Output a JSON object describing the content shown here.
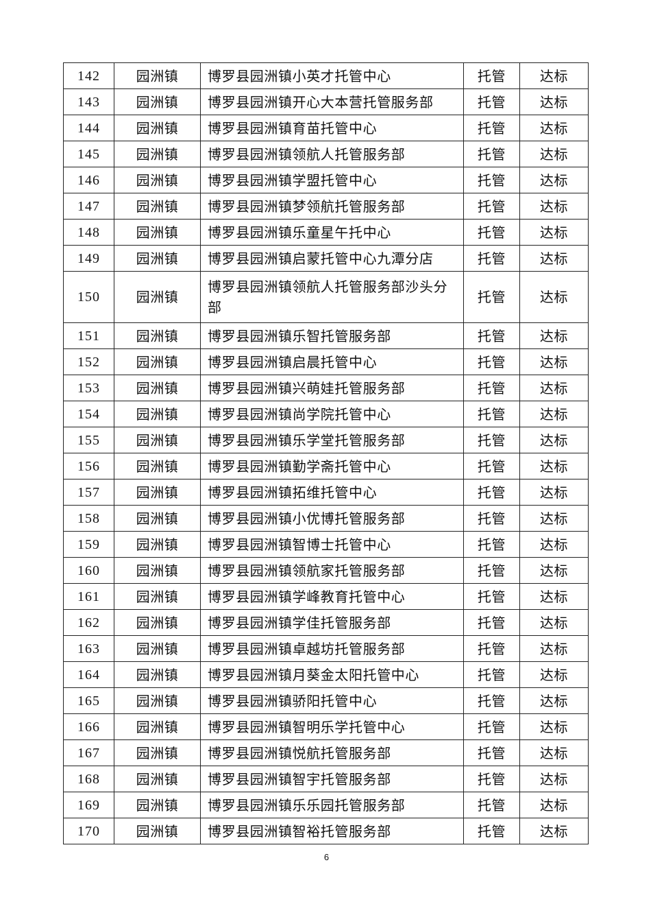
{
  "table": {
    "rows": [
      {
        "no": "142",
        "town": "园洲镇",
        "name": "博罗县园洲镇小英才托管中心",
        "type": "托管",
        "result": "达标"
      },
      {
        "no": "143",
        "town": "园洲镇",
        "name": "博罗县园洲镇开心大本营托管服务部",
        "type": "托管",
        "result": "达标"
      },
      {
        "no": "144",
        "town": "园洲镇",
        "name": "博罗县园洲镇育苗托管中心",
        "type": "托管",
        "result": "达标"
      },
      {
        "no": "145",
        "town": "园洲镇",
        "name": "博罗县园洲镇领航人托管服务部",
        "type": "托管",
        "result": "达标"
      },
      {
        "no": "146",
        "town": "园洲镇",
        "name": "博罗县园洲镇学盟托管中心",
        "type": "托管",
        "result": "达标"
      },
      {
        "no": "147",
        "town": "园洲镇",
        "name": "博罗县园洲镇梦领航托管服务部",
        "type": "托管",
        "result": "达标"
      },
      {
        "no": "148",
        "town": "园洲镇",
        "name": "博罗县园洲镇乐童星午托中心",
        "type": "托管",
        "result": "达标"
      },
      {
        "no": "149",
        "town": "园洲镇",
        "name": "博罗县园洲镇启蒙托管中心九潭分店",
        "type": "托管",
        "result": "达标"
      },
      {
        "no": "150",
        "town": "园洲镇",
        "name": "博罗县园洲镇领航人托管服务部沙头分部",
        "type": "托管",
        "result": "达标"
      },
      {
        "no": "151",
        "town": "园洲镇",
        "name": "博罗县园洲镇乐智托管服务部",
        "type": "托管",
        "result": "达标"
      },
      {
        "no": "152",
        "town": "园洲镇",
        "name": "博罗县园洲镇启晨托管中心",
        "type": "托管",
        "result": "达标"
      },
      {
        "no": "153",
        "town": "园洲镇",
        "name": "博罗县园洲镇兴萌娃托管服务部",
        "type": "托管",
        "result": "达标"
      },
      {
        "no": "154",
        "town": "园洲镇",
        "name": "博罗县园洲镇尚学院托管中心",
        "type": "托管",
        "result": "达标"
      },
      {
        "no": "155",
        "town": "园洲镇",
        "name": "博罗县园洲镇乐学堂托管服务部",
        "type": "托管",
        "result": "达标"
      },
      {
        "no": "156",
        "town": "园洲镇",
        "name": "博罗县园洲镇勤学斋托管中心",
        "type": "托管",
        "result": "达标"
      },
      {
        "no": "157",
        "town": "园洲镇",
        "name": "博罗县园洲镇拓维托管中心",
        "type": "托管",
        "result": "达标"
      },
      {
        "no": "158",
        "town": "园洲镇",
        "name": "博罗县园洲镇小优博托管服务部",
        "type": "托管",
        "result": "达标"
      },
      {
        "no": "159",
        "town": "园洲镇",
        "name": "博罗县园洲镇智博士托管中心",
        "type": "托管",
        "result": "达标"
      },
      {
        "no": "160",
        "town": "园洲镇",
        "name": "博罗县园洲镇领航家托管服务部",
        "type": "托管",
        "result": "达标"
      },
      {
        "no": "161",
        "town": "园洲镇",
        "name": "博罗县园洲镇学峰教育托管中心",
        "type": "托管",
        "result": "达标"
      },
      {
        "no": "162",
        "town": "园洲镇",
        "name": "博罗县园洲镇学佳托管服务部",
        "type": "托管",
        "result": "达标"
      },
      {
        "no": "163",
        "town": "园洲镇",
        "name": "博罗县园洲镇卓越坊托管服务部",
        "type": "托管",
        "result": "达标"
      },
      {
        "no": "164",
        "town": "园洲镇",
        "name": "博罗县园洲镇月葵金太阳托管中心",
        "type": "托管",
        "result": "达标"
      },
      {
        "no": "165",
        "town": "园洲镇",
        "name": "博罗县园洲镇骄阳托管中心",
        "type": "托管",
        "result": "达标"
      },
      {
        "no": "166",
        "town": "园洲镇",
        "name": "博罗县园洲镇智明乐学托管中心",
        "type": "托管",
        "result": "达标"
      },
      {
        "no": "167",
        "town": "园洲镇",
        "name": "博罗县园洲镇悦航托管服务部",
        "type": "托管",
        "result": "达标"
      },
      {
        "no": "168",
        "town": "园洲镇",
        "name": "博罗县园洲镇智宇托管服务部",
        "type": "托管",
        "result": "达标"
      },
      {
        "no": "169",
        "town": "园洲镇",
        "name": "博罗县园洲镇乐乐园托管服务部",
        "type": "托管",
        "result": "达标"
      },
      {
        "no": "170",
        "town": "园洲镇",
        "name": "博罗县园洲镇智裕托管服务部",
        "type": "托管",
        "result": "达标"
      }
    ]
  },
  "footer": {
    "page_number": "6"
  }
}
